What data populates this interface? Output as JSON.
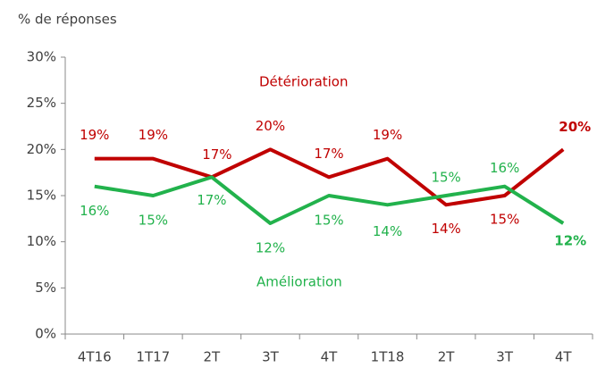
{
  "chart_data": {
    "type": "line",
    "axis_title": "% de réponses",
    "categories": [
      "4T16",
      "1T17",
      "2T",
      "3T",
      "4T",
      "1T18",
      "2T",
      "3T",
      "4T"
    ],
    "series": [
      {
        "name": "Détérioration",
        "color": "#c00000",
        "values": [
          19,
          19,
          17,
          20,
          17,
          19,
          14,
          15,
          20
        ],
        "value_labels": [
          "19%",
          "19%",
          "17%",
          "20%",
          "17%",
          "19%",
          "14%",
          "15%",
          "20%"
        ]
      },
      {
        "name": "Amélioration",
        "color": "#22b24c",
        "values": [
          16,
          15,
          17,
          12,
          15,
          14,
          15,
          16,
          12
        ],
        "value_labels": [
          "16%",
          "15%",
          "17%",
          "12%",
          "15%",
          "14%",
          "15%",
          "16%",
          "12%"
        ]
      }
    ],
    "ylim": [
      0,
      30
    ],
    "yticks": [
      {
        "value": 0,
        "label": "0%"
      },
      {
        "value": 5,
        "label": "5%"
      },
      {
        "value": 10,
        "label": "10%"
      },
      {
        "value": 15,
        "label": "15%"
      },
      {
        "value": 20,
        "label": "20%"
      },
      {
        "value": 25,
        "label": "25%"
      },
      {
        "value": 30,
        "label": "30%"
      }
    ],
    "grid": false
  }
}
